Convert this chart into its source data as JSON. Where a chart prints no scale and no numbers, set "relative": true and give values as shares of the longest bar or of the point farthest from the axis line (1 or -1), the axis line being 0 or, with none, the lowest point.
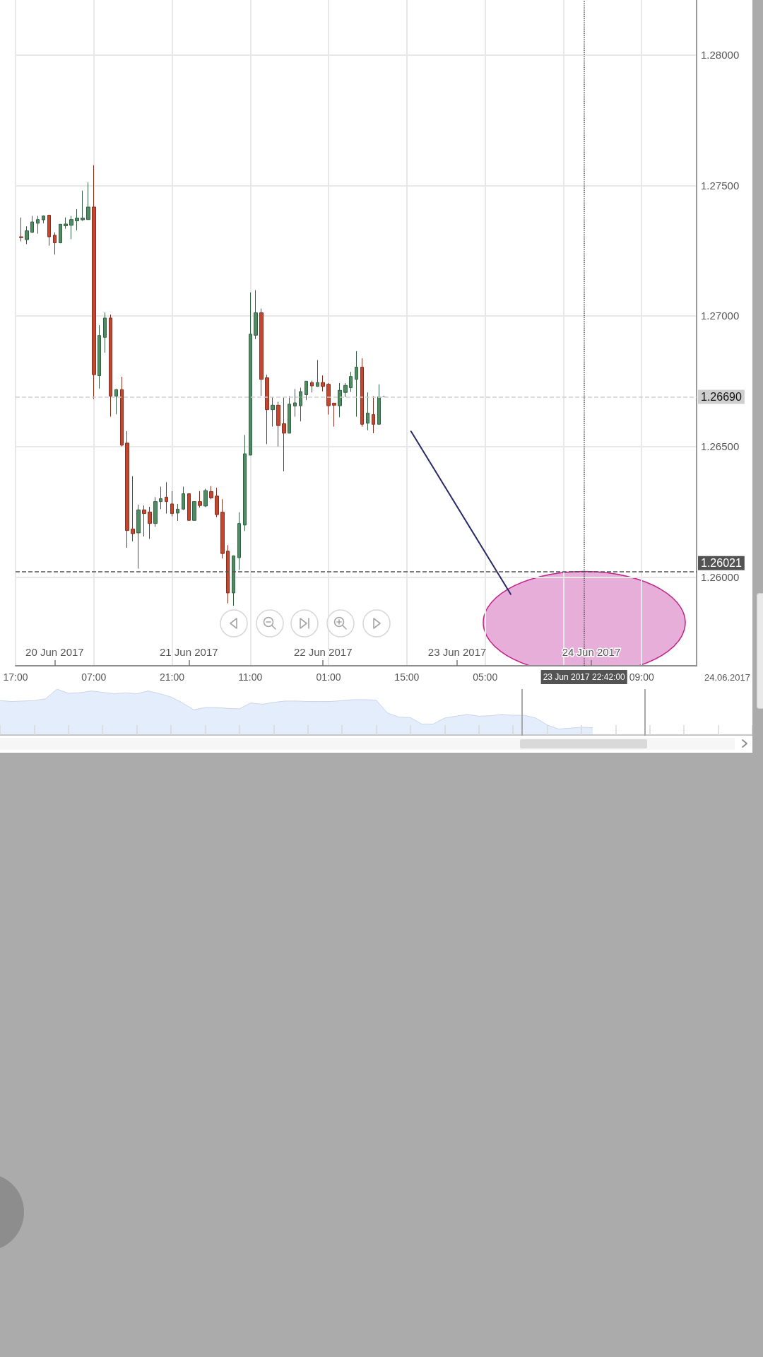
{
  "chart_data": [
    {
      "type": "candlestick",
      "series": [
        {
          "type": "candlestick",
          "x": [
            "2017-06-19T18:00",
            "2017-06-19T19:00",
            "2017-06-19T20:00",
            "2017-06-19T21:00",
            "2017-06-19T22:00",
            "2017-06-19T23:00",
            "2017-06-20T00:00",
            "2017-06-20T01:00",
            "2017-06-20T02:00",
            "2017-06-20T03:00",
            "2017-06-20T04:00",
            "2017-06-20T05:00",
            "2017-06-20T06:00",
            "2017-06-20T07:00",
            "2017-06-20T08:00",
            "2017-06-20T09:00",
            "2017-06-20T10:00",
            "2017-06-20T11:00",
            "2017-06-20T12:00",
            "2017-06-20T13:00",
            "2017-06-20T14:00",
            "2017-06-20T15:00",
            "2017-06-20T16:00",
            "2017-06-20T17:00",
            "2017-06-20T18:00",
            "2017-06-20T19:00",
            "2017-06-20T20:00",
            "2017-06-20T21:00",
            "2017-06-20T22:00",
            "2017-06-20T23:00",
            "2017-06-21T00:00",
            "2017-06-21T01:00",
            "2017-06-21T02:00",
            "2017-06-21T03:00",
            "2017-06-21T04:00",
            "2017-06-21T05:00",
            "2017-06-21T06:00",
            "2017-06-21T07:00",
            "2017-06-21T08:00",
            "2017-06-21T09:00",
            "2017-06-21T10:00",
            "2017-06-21T11:00",
            "2017-06-21T12:00",
            "2017-06-21T13:00",
            "2017-06-21T14:00",
            "2017-06-21T15:00",
            "2017-06-21T16:00",
            "2017-06-21T17:00",
            "2017-06-21T18:00",
            "2017-06-21T19:00",
            "2017-06-21T20:00",
            "2017-06-21T21:00",
            "2017-06-21T22:00",
            "2017-06-21T23:00",
            "2017-06-22T00:00",
            "2017-06-22T01:00",
            "2017-06-22T02:00",
            "2017-06-22T03:00",
            "2017-06-22T04:00",
            "2017-06-22T05:00",
            "2017-06-22T06:00",
            "2017-06-22T07:00",
            "2017-06-22T08:00",
            "2017-06-22T09:00",
            "2017-06-22T10:00",
            "2017-06-22T11:00"
          ],
          "ohlc": [
            [
              1.27303,
              1.27377,
              1.27286,
              1.273
            ],
            [
              1.27292,
              1.27343,
              1.27275,
              1.27326
            ],
            [
              1.2732,
              1.27383,
              1.27318,
              1.2736
            ],
            [
              1.27355,
              1.27383,
              1.27315,
              1.27369
            ],
            [
              1.27368,
              1.27385,
              1.27355,
              1.27383
            ],
            [
              1.27386,
              1.27387,
              1.27269,
              1.27303
            ],
            [
              1.27309,
              1.2732,
              1.27235,
              1.2728
            ],
            [
              1.2728,
              1.27352,
              1.27278,
              1.27351
            ],
            [
              1.27345,
              1.27377,
              1.27334,
              1.27352
            ],
            [
              1.27347,
              1.27383,
              1.27294,
              1.27369
            ],
            [
              1.27364,
              1.27409,
              1.27328,
              1.27375
            ],
            [
              1.27368,
              1.2748,
              1.27364,
              1.27375
            ],
            [
              1.27369,
              1.27511,
              1.27368,
              1.27417
            ],
            [
              1.27417,
              1.27577,
              1.26682,
              1.26775
            ],
            [
              1.26771,
              1.26965,
              1.26722,
              1.26925
            ],
            [
              1.26918,
              1.27013,
              1.26859,
              1.26992
            ],
            [
              1.26992,
              1.27005,
              1.26614,
              1.26693
            ],
            [
              1.26693,
              1.2672,
              1.26623,
              1.26718
            ],
            [
              1.26718,
              1.26767,
              1.265,
              1.26505
            ],
            [
              1.26513,
              1.26559,
              1.26112,
              1.26178
            ],
            [
              1.26184,
              1.26386,
              1.26137,
              1.26166
            ],
            [
              1.26169,
              1.26277,
              1.26032,
              1.26257
            ],
            [
              1.26257,
              1.26274,
              1.26155,
              1.26243
            ],
            [
              1.26249,
              1.26269,
              1.26146,
              1.26205
            ],
            [
              1.26205,
              1.26306,
              1.26192,
              1.26289
            ],
            [
              1.26289,
              1.26346,
              1.2626,
              1.263
            ],
            [
              1.26306,
              1.26363,
              1.26243,
              1.26289
            ],
            [
              1.2628,
              1.26329,
              1.26232,
              1.26243
            ],
            [
              1.26245,
              1.2628,
              1.26215,
              1.2626
            ],
            [
              1.2626,
              1.26346,
              1.26257,
              1.26319
            ],
            [
              1.26319,
              1.2632,
              1.26215,
              1.26217
            ],
            [
              1.26217,
              1.2629,
              1.26216,
              1.26289
            ],
            [
              1.26289,
              1.26329,
              1.26266,
              1.26274
            ],
            [
              1.26272,
              1.26338,
              1.26268,
              1.26331
            ],
            [
              1.26327,
              1.26348,
              1.26298,
              1.26303
            ],
            [
              1.2631,
              1.26342,
              1.26229,
              1.26239
            ],
            [
              1.26248,
              1.26298,
              1.26071,
              1.2609
            ],
            [
              1.26099,
              1.26122,
              1.25899,
              1.25939
            ],
            [
              1.25939,
              1.26082,
              1.2589,
              1.26081
            ],
            [
              1.26074,
              1.26248,
              1.26027,
              1.26205
            ],
            [
              1.26199,
              1.26544,
              1.26176,
              1.26472
            ],
            [
              1.26467,
              1.2709,
              1.26466,
              1.2693
            ],
            [
              1.26926,
              1.27099,
              1.26911,
              1.27012
            ],
            [
              1.27012,
              1.27028,
              1.26694,
              1.26757
            ],
            [
              1.26763,
              1.26775,
              1.26509,
              1.26641
            ],
            [
              1.26641,
              1.26689,
              1.26576,
              1.26658
            ],
            [
              1.26658,
              1.26671,
              1.265,
              1.2658
            ],
            [
              1.26587,
              1.26687,
              1.26405,
              1.26551
            ],
            [
              1.26551,
              1.26693,
              1.2655,
              1.26662
            ],
            [
              1.26655,
              1.2672,
              1.26614,
              1.26667
            ],
            [
              1.26656,
              1.26725,
              1.26596,
              1.2671
            ],
            [
              1.26698,
              1.26751,
              1.26678,
              1.2675
            ],
            [
              1.26745,
              1.26752,
              1.26707,
              1.26732
            ],
            [
              1.2673,
              1.26831,
              1.26729,
              1.26745
            ],
            [
              1.26745,
              1.26772,
              1.26711,
              1.2673
            ],
            [
              1.26738,
              1.26743,
              1.26622,
              1.26656
            ],
            [
              1.26666,
              1.26667,
              1.26576,
              1.26658
            ],
            [
              1.26656,
              1.26743,
              1.26612,
              1.26715
            ],
            [
              1.26707,
              1.26743,
              1.26689,
              1.26734
            ],
            [
              1.26725,
              1.26786,
              1.26709,
              1.26768
            ],
            [
              1.26757,
              1.26865,
              1.26614,
              1.26804
            ],
            [
              1.26804,
              1.26838,
              1.26576,
              1.26585
            ],
            [
              1.26589,
              1.26707,
              1.26562,
              1.26628
            ],
            [
              1.26622,
              1.26693,
              1.26551,
              1.26585
            ],
            [
              1.26585,
              1.26738,
              1.26585,
              1.2669
            ],
            [
              1.2669,
              1.26695,
              1.2669,
              1.2669
            ]
          ],
          "colors": [
            "#c4462f",
            "#4e8c62",
            "#4e8c62",
            "#4e8c62",
            "#4e8c62",
            "#c4462f",
            "#c4462f",
            "#4e8c62",
            "#4e8c62",
            "#4e8c62",
            "#4e8c62",
            "#4e8c62",
            "#4e8c62",
            "#c4462f",
            "#4e8c62",
            "#4e8c62",
            "#c4462f",
            "#4e8c62",
            "#c4462f",
            "#c4462f",
            "#c4462f",
            "#4e8c62",
            "#c4462f",
            "#c4462f",
            "#4e8c62",
            "#4e8c62",
            "#c4462f",
            "#c4462f",
            "#4e8c62",
            "#4e8c62",
            "#c4462f",
            "#4e8c62",
            "#c4462f",
            "#4e8c62",
            "#c4462f",
            "#c4462f",
            "#c4462f",
            "#c4462f",
            "#4e8c62",
            "#4e8c62",
            "#4e8c62",
            "#4e8c62",
            "#4e8c62",
            "#c4462f",
            "#c4462f",
            "#4e8c62",
            "#c4462f",
            "#c4462f",
            "#4e8c62",
            "#4e8c62",
            "#4e8c62",
            "#4e8c62",
            "#c4462f",
            "#4e8c62",
            "#c4462f",
            "#c4462f",
            "#c4462f",
            "#4e8c62",
            "#4e8c62",
            "#4e8c62",
            "#4e8c62",
            "#c4462f",
            "#4e8c62",
            "#c4462f",
            "#4e8c62",
            "#8f8f8f"
          ]
        },
        {
          "type": "line",
          "x": [
            "2017-06-22T15:45",
            "2017-06-23T09:35"
          ],
          "values": [
            1.26558,
            1.25934
          ],
          "color": "#262a66"
        }
      ],
      "xlim": [
        "2017-06-19T17:00",
        "2017-06-24T18:50"
      ],
      "xticks": [
        {
          "value": "2017-06-19T17:00",
          "label": "17:00"
        },
        {
          "value": "2017-06-20T07:00",
          "label": "07:00"
        },
        {
          "value": "2017-06-20T21:00",
          "label": "21:00"
        },
        {
          "value": "2017-06-21T11:00",
          "label": "11:00"
        },
        {
          "value": "2017-06-22T01:00",
          "label": "01:00"
        },
        {
          "value": "2017-06-22T15:00",
          "label": "15:00"
        },
        {
          "value": "2017-06-23T05:00",
          "label": "05:00"
        },
        {
          "value": "2017-06-23T19:00",
          "label": null
        },
        {
          "value": "2017-06-24T09:00",
          "label": "09:00"
        }
      ],
      "x2lim": [
        "2017-06-19T17:00",
        "2017-06-24T18:50"
      ],
      "x2ticks": [
        {
          "value": "2017-06-20",
          "label": "20 Jun 2017"
        },
        {
          "value": "2017-06-21",
          "label": "21 Jun 2017"
        },
        {
          "value": "2017-06-22",
          "label": "22 Jun 2017"
        },
        {
          "value": "2017-06-23",
          "label": "23 Jun 2017"
        },
        {
          "value": "2017-06-24",
          "label": "24 Jun 2017"
        }
      ],
      "ylim": [
        1.2566,
        1.2821
      ],
      "yticks": [
        {
          "value": 1.26,
          "label": "1.26000"
        },
        {
          "value": 1.265,
          "label": "1.26500"
        },
        {
          "value": 1.27,
          "label": "1.27000"
        },
        {
          "value": 1.275,
          "label": "1.27500"
        },
        {
          "value": 1.28,
          "label": "1.28000"
        }
      ],
      "grid": true,
      "ref_lines": [
        {
          "axis": "y",
          "value": 1.2669,
          "label": "1.26690",
          "color": "#cfcfcf",
          "line_style": "dashed"
        },
        {
          "axis": "y",
          "value": 1.26021,
          "label": "1.26021",
          "color": "#535353",
          "line_style": "dashed"
        },
        {
          "axis": "x",
          "value": "2017-06-23T22:42",
          "label": "23 Jun 2017 22:42:00",
          "color": "#535353",
          "line_style": "dotted"
        }
      ],
      "annotations": [
        "24.06.2017"
      ]
    },
    {
      "type": "area",
      "relative": true,
      "categories": [
        null,
        null,
        null,
        null,
        null,
        null,
        null,
        null,
        null,
        null,
        null,
        null,
        null,
        null,
        null,
        null,
        null,
        null,
        null,
        null,
        null,
        null,
        null,
        null,
        null,
        null,
        null,
        null,
        null,
        null,
        null,
        null,
        null,
        null,
        null,
        null,
        null,
        null,
        null,
        null,
        null,
        null,
        null,
        null,
        null,
        null,
        null,
        null,
        null,
        null,
        null,
        null,
        null,
        null,
        null,
        null,
        null,
        null,
        null,
        null,
        null,
        null,
        null,
        null,
        null,
        null,
        null
      ],
      "values": [
        0.75,
        0.73,
        0.74,
        0.75,
        0.79,
        1.0,
        0.91,
        0.92,
        0.96,
        0.93,
        0.9,
        0.92,
        0.9,
        0.96,
        0.9,
        0.83,
        0.7,
        0.55,
        0.6,
        0.6,
        0.58,
        0.57,
        0.7,
        0.67,
        0.71,
        0.74,
        0.74,
        0.73,
        0.73,
        0.73,
        0.75,
        0.77,
        0.77,
        0.76,
        0.48,
        0.39,
        0.38,
        0.24,
        0.24,
        0.37,
        0.41,
        0.45,
        0.41,
        0.42,
        0.45,
        0.43,
        0.43,
        0.37,
        0.22,
        0.13,
        0.15,
        0.17,
        0.16,
        null,
        null,
        null,
        null,
        null,
        null,
        null,
        null,
        null,
        null,
        null,
        null,
        null,
        null
      ],
      "color": "#e3edfc"
    }
  ]
}
